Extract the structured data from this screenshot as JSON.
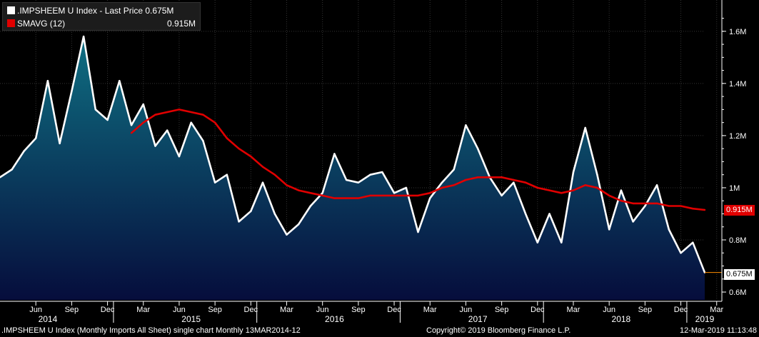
{
  "legend": {
    "series1_label": ".IMPSHEEM U Index - Last Price 0.675M",
    "series2_label": "SMAVG (12)",
    "series2_value": "0.915M"
  },
  "tags": {
    "smavg_last": "0.915M",
    "price_last": "0.675M"
  },
  "footer": {
    "left": ".IMPSHEEM U Index (Monthly Imports All Sheet) single chart  Monthly 13MAR2014-12",
    "center": "Copyright© 2019 Bloomberg Finance L.P.",
    "right": "12-Mar-2019 11:13:48"
  },
  "colors": {
    "background": "#000000",
    "price_line": "#ffffff",
    "area_top": "#0f6f82",
    "area_bottom": "#060d3c",
    "smavg_line": "#e00000"
  },
  "chart_data": {
    "type": "area",
    "y_axis_position": "right",
    "ylim": [
      0.57,
      1.72
    ],
    "y_ticks": [
      0.6,
      0.8,
      1.0,
      1.2,
      1.4,
      1.6
    ],
    "y_tick_labels": [
      "0.6M",
      "0.8M",
      "1M",
      "1.2M",
      "1.4M",
      "1.6M"
    ],
    "month_ticks": [
      {
        "label": "Jun",
        "x": "2014-06"
      },
      {
        "label": "Sep",
        "x": "2014-09"
      },
      {
        "label": "Dec",
        "x": "2014-12"
      },
      {
        "label": "Mar",
        "x": "2015-03"
      },
      {
        "label": "Jun",
        "x": "2015-06"
      },
      {
        "label": "Sep",
        "x": "2015-09"
      },
      {
        "label": "Dec",
        "x": "2015-12"
      },
      {
        "label": "Mar",
        "x": "2016-03"
      },
      {
        "label": "Jun",
        "x": "2016-06"
      },
      {
        "label": "Sep",
        "x": "2016-09"
      },
      {
        "label": "Dec",
        "x": "2016-12"
      },
      {
        "label": "Mar",
        "x": "2017-03"
      },
      {
        "label": "Jun",
        "x": "2017-06"
      },
      {
        "label": "Sep",
        "x": "2017-09"
      },
      {
        "label": "Dec",
        "x": "2017-12"
      },
      {
        "label": "Mar",
        "x": "2018-03"
      },
      {
        "label": "Jun",
        "x": "2018-06"
      },
      {
        "label": "Sep",
        "x": "2018-09"
      },
      {
        "label": "Dec",
        "x": "2018-12"
      },
      {
        "label": "Mar",
        "x": "2019-03"
      }
    ],
    "year_labels": [
      {
        "label": "2014",
        "x": "2014-07"
      },
      {
        "label": "2015",
        "x": "2015-07"
      },
      {
        "label": "2016",
        "x": "2016-07"
      },
      {
        "label": "2017",
        "x": "2017-07"
      },
      {
        "label": "2018",
        "x": "2018-07"
      },
      {
        "label": "2019",
        "x": "2019-02"
      }
    ],
    "series": [
      {
        "name": ".IMPSHEEM U Index",
        "x": [
          "2014-03",
          "2014-04",
          "2014-05",
          "2014-06",
          "2014-07",
          "2014-08",
          "2014-09",
          "2014-10",
          "2014-11",
          "2014-12",
          "2015-01",
          "2015-02",
          "2015-03",
          "2015-04",
          "2015-05",
          "2015-06",
          "2015-07",
          "2015-08",
          "2015-09",
          "2015-10",
          "2015-11",
          "2015-12",
          "2016-01",
          "2016-02",
          "2016-03",
          "2016-04",
          "2016-05",
          "2016-06",
          "2016-07",
          "2016-08",
          "2016-09",
          "2016-10",
          "2016-11",
          "2016-12",
          "2017-01",
          "2017-02",
          "2017-03",
          "2017-04",
          "2017-05",
          "2017-06",
          "2017-07",
          "2017-08",
          "2017-09",
          "2017-10",
          "2017-11",
          "2017-12",
          "2018-01",
          "2018-02",
          "2018-03",
          "2018-04",
          "2018-05",
          "2018-06",
          "2018-07",
          "2018-08",
          "2018-09",
          "2018-10",
          "2018-11",
          "2018-12",
          "2019-01",
          "2019-02"
        ],
        "values": [
          1.04,
          1.07,
          1.14,
          1.19,
          1.41,
          1.17,
          1.37,
          1.58,
          1.3,
          1.26,
          1.41,
          1.24,
          1.32,
          1.16,
          1.22,
          1.12,
          1.25,
          1.18,
          1.02,
          1.05,
          0.87,
          0.91,
          1.02,
          0.9,
          0.82,
          0.86,
          0.93,
          0.98,
          1.13,
          1.03,
          1.02,
          1.05,
          1.06,
          0.98,
          1.0,
          0.83,
          0.96,
          1.02,
          1.07,
          1.24,
          1.15,
          1.04,
          0.97,
          1.02,
          0.9,
          0.79,
          0.9,
          0.79,
          1.06,
          1.23,
          1.05,
          0.84,
          0.99,
          0.87,
          0.93,
          1.01,
          0.84,
          0.75,
          0.79,
          0.675
        ]
      },
      {
        "name": "SMAVG (12)",
        "x": [
          "2015-02",
          "2015-03",
          "2015-04",
          "2015-05",
          "2015-06",
          "2015-07",
          "2015-08",
          "2015-09",
          "2015-10",
          "2015-11",
          "2015-12",
          "2016-01",
          "2016-02",
          "2016-03",
          "2016-04",
          "2016-05",
          "2016-06",
          "2016-07",
          "2016-08",
          "2016-09",
          "2016-10",
          "2016-11",
          "2016-12",
          "2017-01",
          "2017-02",
          "2017-03",
          "2017-04",
          "2017-05",
          "2017-06",
          "2017-07",
          "2017-08",
          "2017-09",
          "2017-10",
          "2017-11",
          "2017-12",
          "2018-01",
          "2018-02",
          "2018-03",
          "2018-04",
          "2018-05",
          "2018-06",
          "2018-07",
          "2018-08",
          "2018-09",
          "2018-10",
          "2018-11",
          "2018-12",
          "2019-01",
          "2019-02"
        ],
        "values": [
          1.21,
          1.25,
          1.28,
          1.29,
          1.3,
          1.29,
          1.28,
          1.25,
          1.19,
          1.15,
          1.12,
          1.08,
          1.05,
          1.01,
          0.99,
          0.98,
          0.97,
          0.96,
          0.96,
          0.96,
          0.97,
          0.97,
          0.97,
          0.97,
          0.97,
          0.98,
          1.0,
          1.01,
          1.03,
          1.04,
          1.04,
          1.04,
          1.03,
          1.02,
          1.0,
          0.99,
          0.98,
          0.99,
          1.01,
          1.0,
          0.97,
          0.95,
          0.94,
          0.94,
          0.94,
          0.93,
          0.93,
          0.92,
          0.915
        ]
      }
    ]
  }
}
